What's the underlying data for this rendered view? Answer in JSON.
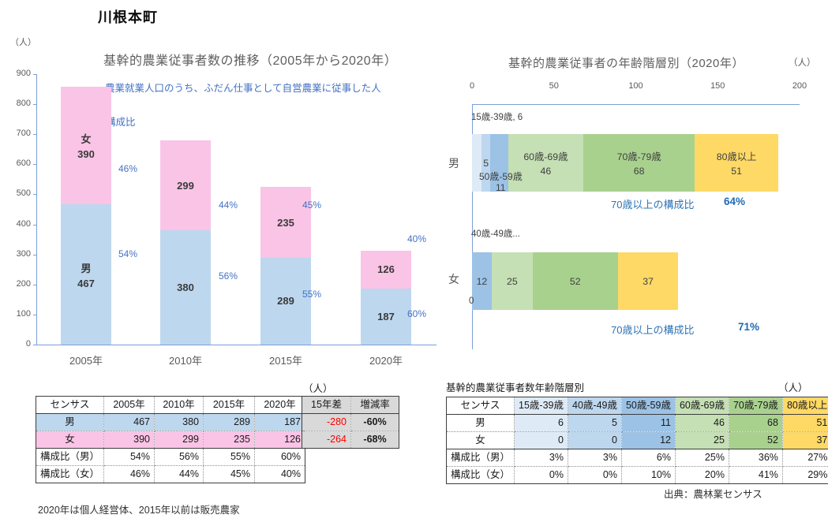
{
  "page_title": "川根本町",
  "left_chart": {
    "unit": "（人）",
    "title": "基幹的農業従事者数の推移（2005年から2020年）",
    "subtitle": "農業就業人口のうち、ふだん仕事として自営農業に従事した人",
    "share_title": "構成比"
  },
  "right_chart": {
    "unit": "（人）",
    "title": "基幹的農業従事者の年齢階層別（2020年）",
    "annotations": {
      "male_first_group": "15歳-39歳, 6",
      "male_50s_name": "50歳-59歳",
      "male_50s_value": "11",
      "female_first_groups": "40歳-49歳...",
      "female_zero": "0"
    },
    "over70": {
      "label": "70歳以上の構成比",
      "male": "64%",
      "female": "71%"
    }
  },
  "chart_data": [
    {
      "type": "bar",
      "stacked": true,
      "title": "基幹的農業従事者数の推移（2005年から2020年）",
      "subtitle": "農業就業人口のうち、ふだん仕事として自営農業に従事した人",
      "unit": "（人）",
      "categories": [
        "2005年",
        "2010年",
        "2015年",
        "2020年"
      ],
      "series": [
        {
          "name": "男",
          "values": [
            467,
            380,
            289,
            187
          ],
          "color": "#BDD7EE"
        },
        {
          "name": "女",
          "values": [
            390,
            299,
            235,
            126
          ],
          "color": "#FAC4E6"
        }
      ],
      "share_labels": {
        "female": [
          "46%",
          "44%",
          "45%",
          "40%"
        ],
        "male": [
          "54%",
          "56%",
          "55%",
          "60%"
        ]
      },
      "ylim": [
        0,
        900
      ],
      "ytick_step": 100,
      "grid": false,
      "legend_position": "in-bar"
    },
    {
      "type": "bar",
      "orientation": "horizontal",
      "stacked": true,
      "title": "基幹的農業従事者の年齢階層別（2020年）",
      "unit": "（人）",
      "categories": [
        "男",
        "女"
      ],
      "series": [
        {
          "name": "15歳-39歳",
          "values": [
            6,
            0
          ],
          "color": "#DEEBF7"
        },
        {
          "name": "40歳-49歳",
          "values": [
            5,
            0
          ],
          "color": "#BDD7EE"
        },
        {
          "name": "50歳-59歳",
          "values": [
            11,
            12
          ],
          "color": "#9CC2E5"
        },
        {
          "name": "60歳-69歳",
          "values": [
            46,
            25
          ],
          "color": "#C5E0B4"
        },
        {
          "name": "70歳-79歳",
          "values": [
            68,
            52
          ],
          "color": "#A9D18E"
        },
        {
          "name": "80歳以上",
          "values": [
            51,
            37
          ],
          "color": "#FFD966"
        }
      ],
      "xlim": [
        0,
        200
      ],
      "xticks": [
        0,
        50,
        100,
        150,
        200
      ],
      "over70_share": {
        "label": "70歳以上の構成比",
        "male": "64%",
        "female": "71%"
      }
    }
  ],
  "left_table": {
    "unit": "（人）",
    "main_headers": [
      "センサス",
      "2005年",
      "2010年",
      "2015年",
      "2020年"
    ],
    "extra_headers": [
      "15年差",
      "増減率"
    ],
    "rows": [
      {
        "label": "男",
        "values": [
          "467",
          "380",
          "289",
          "187"
        ],
        "diff": "-280",
        "rate": "-60%",
        "bg": "#BDD7EE"
      },
      {
        "label": "女",
        "values": [
          "390",
          "299",
          "235",
          "126"
        ],
        "diff": "-264",
        "rate": "-68%",
        "bg": "#FAC4E6"
      },
      {
        "label": "構成比（男）",
        "values": [
          "54%",
          "56%",
          "55%",
          "60%"
        ]
      },
      {
        "label": "構成比（女）",
        "values": [
          "46%",
          "44%",
          "45%",
          "40%"
        ]
      }
    ]
  },
  "right_table": {
    "title": "基幹的農業従事者数年齢階層別",
    "unit": "（人）",
    "headers": [
      "センサス",
      "15歳-39歳",
      "40歳-49歳",
      "50歳-59歳",
      "60歳-69歳",
      "70歳-79歳",
      "80歳以上"
    ],
    "col_colors": [
      "#FFFFFF",
      "#DEEBF7",
      "#BDD7EE",
      "#9CC2E5",
      "#C5E0B4",
      "#A9D18E",
      "#FFD966"
    ],
    "rows": [
      {
        "label": "男",
        "values": [
          "6",
          "5",
          "11",
          "46",
          "68",
          "51"
        ],
        "colored": true
      },
      {
        "label": "女",
        "values": [
          "0",
          "0",
          "12",
          "25",
          "52",
          "37"
        ],
        "colored": true
      },
      {
        "label": "構成比（男）",
        "values": [
          "3%",
          "3%",
          "6%",
          "25%",
          "36%",
          "27%"
        ]
      },
      {
        "label": "構成比（女）",
        "values": [
          "0%",
          "0%",
          "10%",
          "20%",
          "41%",
          "29%"
        ]
      }
    ]
  },
  "footnotes": {
    "left": "2020年は個人経営体、2015年以前は販売農家",
    "source": "出典：農林業センサス"
  },
  "colors": {
    "axis": "#7C9FD8",
    "share_text": "#4472C4",
    "over70_label": "#2E74B5",
    "over70_value": "#1F6BB5",
    "tick_text": "#595959",
    "negative": "#FF0000",
    "table_gray": "#D9D9D9"
  }
}
